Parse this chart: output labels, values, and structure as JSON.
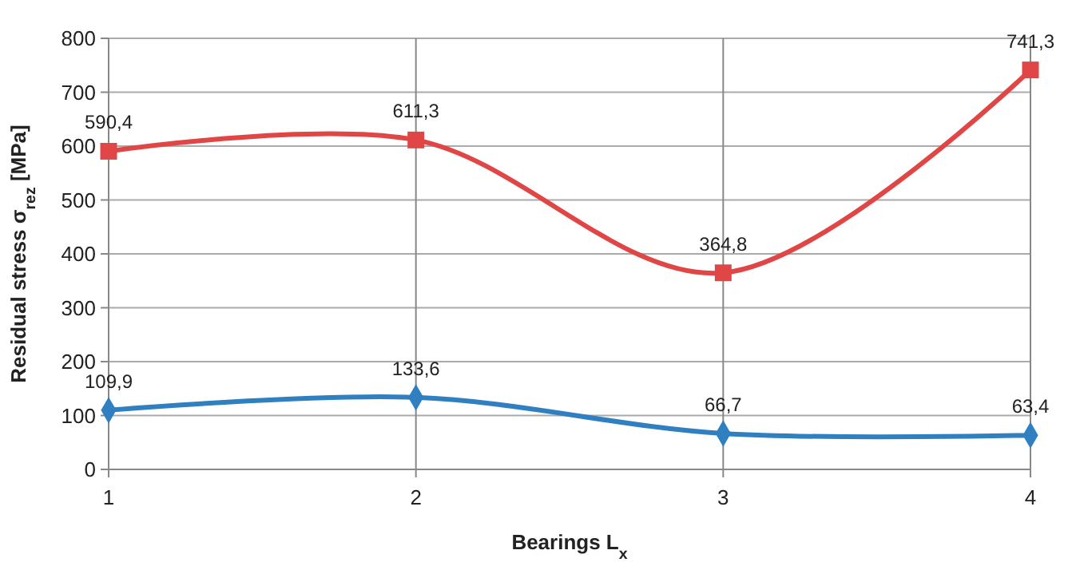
{
  "chart_data": {
    "type": "line",
    "xlabel": "Bearings L$_{x}$",
    "ylabel": "Residual stress σ$_{rez}$ [MPa]",
    "x": [
      1,
      2,
      3,
      4
    ],
    "xlim": [
      1,
      4
    ],
    "xticks": [
      1,
      2,
      3,
      4
    ],
    "ylim": [
      0,
      800
    ],
    "yticks": [
      0,
      100,
      200,
      300,
      400,
      500,
      600,
      700,
      800
    ],
    "grid": true,
    "series": [
      {
        "color": "#e04646",
        "marker": "square",
        "values": [
          590.4,
          611.3,
          364.8,
          741.3
        ],
        "value_labels": [
          "590,4",
          "611,3",
          "364,8",
          "741,3"
        ]
      },
      {
        "color": "#2f7fc1",
        "marker": "diamond",
        "values": [
          109.9,
          133.6,
          66.7,
          63.4
        ],
        "value_labels": [
          "109,9",
          "133,6",
          "66,7",
          "63,4"
        ]
      }
    ]
  }
}
